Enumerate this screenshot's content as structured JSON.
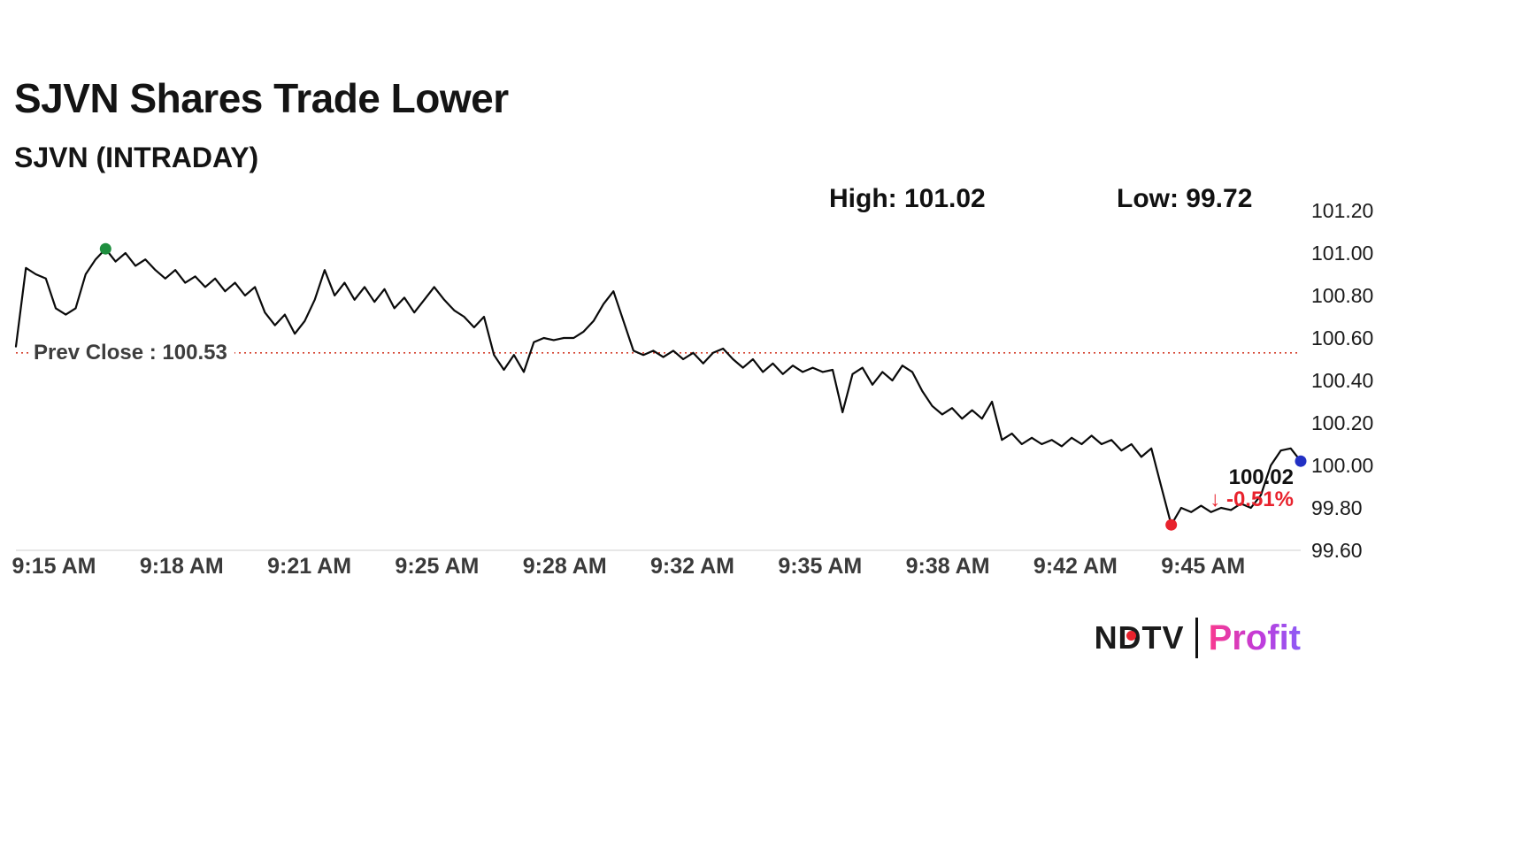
{
  "header": {
    "title": "SJVN Shares Trade Lower",
    "subtitle": "SJVN (INTRADAY)",
    "high_label": "High: 101.02",
    "low_label": "Low: 99.72"
  },
  "chart_data": {
    "type": "line",
    "title": "SJVN (INTRADAY)",
    "series": [
      {
        "name": "SJVN intraday price",
        "values": [
          100.56,
          100.93,
          100.9,
          100.88,
          100.74,
          100.71,
          100.74,
          100.9,
          100.97,
          101.02,
          100.96,
          101.0,
          100.94,
          100.97,
          100.92,
          100.88,
          100.92,
          100.86,
          100.89,
          100.84,
          100.88,
          100.82,
          100.86,
          100.8,
          100.84,
          100.72,
          100.66,
          100.71,
          100.62,
          100.68,
          100.78,
          100.92,
          100.8,
          100.86,
          100.78,
          100.84,
          100.77,
          100.83,
          100.74,
          100.79,
          100.72,
          100.78,
          100.84,
          100.78,
          100.73,
          100.7,
          100.65,
          100.7,
          100.52,
          100.45,
          100.52,
          100.44,
          100.58,
          100.6,
          100.59,
          100.6,
          100.6,
          100.63,
          100.68,
          100.76,
          100.82,
          100.68,
          100.54,
          100.52,
          100.54,
          100.51,
          100.54,
          100.5,
          100.53,
          100.48,
          100.53,
          100.55,
          100.5,
          100.46,
          100.5,
          100.44,
          100.48,
          100.43,
          100.47,
          100.44,
          100.46,
          100.44,
          100.45,
          100.25,
          100.43,
          100.46,
          100.38,
          100.44,
          100.4,
          100.47,
          100.44,
          100.35,
          100.28,
          100.24,
          100.27,
          100.22,
          100.26,
          100.22,
          100.3,
          100.12,
          100.15,
          100.1,
          100.13,
          100.1,
          100.12,
          100.09,
          100.13,
          100.1,
          100.14,
          100.1,
          100.12,
          100.07,
          100.1,
          100.04,
          100.08,
          99.9,
          99.72,
          99.8,
          99.78,
          99.81,
          99.78,
          99.8,
          99.79,
          99.82,
          99.8,
          99.86,
          100.0,
          100.07,
          100.08,
          100.02
        ]
      }
    ],
    "x_tick_labels": [
      "9:15 AM",
      "9:18 AM",
      "9:21 AM",
      "9:25 AM",
      "9:28 AM",
      "9:32 AM",
      "9:35 AM",
      "9:38 AM",
      "9:42 AM",
      "9:45 AM"
    ],
    "y_ticks": [
      99.6,
      99.8,
      100.0,
      100.2,
      100.4,
      100.6,
      100.8,
      101.0,
      101.2
    ],
    "ylim": [
      99.6,
      101.2
    ],
    "grid": "off",
    "legend": "none",
    "high": 101.02,
    "low": 99.72,
    "last": 100.02,
    "prev_close": 100.53,
    "prev_close_label": "Prev Close : 100.53",
    "last_label": "100.02",
    "change_label": "↓ -0.51%",
    "line_color": "#0a0a0a",
    "prev_close_color": "#d43d2a",
    "high_dot_color": "#1e8e3e",
    "low_dot_color": "#e8222d",
    "last_dot_color": "#2230c4",
    "axis_color": "#cfcfcf",
    "change_color": "#e8222d"
  },
  "branding": {
    "ndtv": "NDTV",
    "profit": "Profit",
    "ndtv_dot_color": "#e8222d"
  }
}
